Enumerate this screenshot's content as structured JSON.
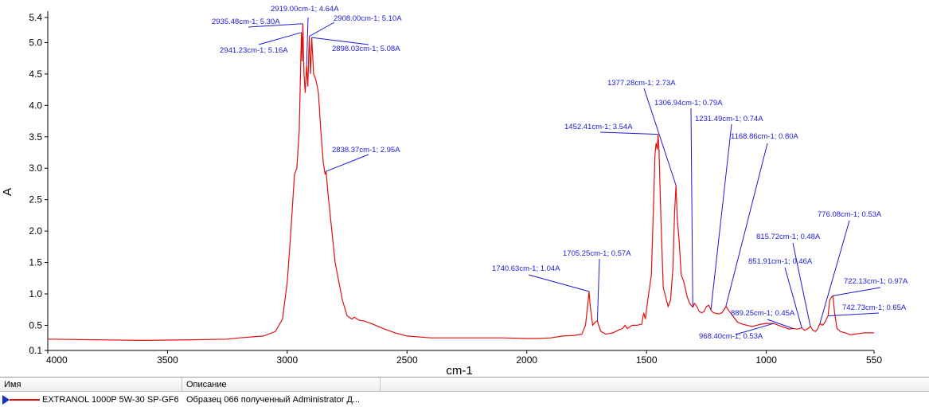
{
  "chart_data": {
    "type": "line",
    "xlabel": "cm-1",
    "ylabel": "A",
    "xlim": [
      4000,
      550
    ],
    "ylim": [
      0.1,
      5.5
    ],
    "x_reversed": true,
    "x_ticks": [
      4000,
      3500,
      3000,
      2500,
      2000,
      1500,
      1000,
      550
    ],
    "y_ticks": [
      {
        "v": 0.1,
        "label": "0.1"
      },
      {
        "v": 0.5,
        "label": "0.5"
      },
      {
        "v": 1.0,
        "label": "1.0"
      },
      {
        "v": 1.5,
        "label": "1.5"
      },
      {
        "v": 2.0,
        "label": "2.0"
      },
      {
        "v": 2.5,
        "label": "2.5"
      },
      {
        "v": 3.0,
        "label": "3.0"
      },
      {
        "v": 3.5,
        "label": "3.5"
      },
      {
        "v": 4.0,
        "label": "4.0"
      },
      {
        "v": 4.5,
        "label": "4.5"
      },
      {
        "v": 5.0,
        "label": "5.0"
      },
      {
        "v": 5.4,
        "label": "5.4"
      }
    ],
    "colors": {
      "series": "#e01010",
      "annotation": "#1a1ad8"
    },
    "series": [
      {
        "name": "EXTRANOL 1000P 5W-30 SP-GF6",
        "points": [
          [
            4000,
            0.28
          ],
          [
            3800,
            0.27
          ],
          [
            3600,
            0.26
          ],
          [
            3400,
            0.27
          ],
          [
            3250,
            0.28
          ],
          [
            3200,
            0.3
          ],
          [
            3100,
            0.33
          ],
          [
            3050,
            0.4
          ],
          [
            3020,
            0.6
          ],
          [
            3000,
            1.2
          ],
          [
            2985,
            2.0
          ],
          [
            2970,
            2.9
          ],
          [
            2960,
            3.0
          ],
          [
            2950,
            3.6
          ],
          [
            2941,
            5.16
          ],
          [
            2938,
            4.7
          ],
          [
            2935,
            5.3
          ],
          [
            2930,
            4.5
          ],
          [
            2925,
            4.2
          ],
          [
            2919,
            4.64
          ],
          [
            2914,
            4.3
          ],
          [
            2908,
            5.1
          ],
          [
            2903,
            4.5
          ],
          [
            2898,
            5.08
          ],
          [
            2890,
            4.5
          ],
          [
            2880,
            4.4
          ],
          [
            2870,
            4.2
          ],
          [
            2860,
            3.6
          ],
          [
            2850,
            3.1
          ],
          [
            2842,
            2.9
          ],
          [
            2838,
            2.95
          ],
          [
            2830,
            2.6
          ],
          [
            2800,
            1.5
          ],
          [
            2770,
            0.9
          ],
          [
            2750,
            0.65
          ],
          [
            2730,
            0.6
          ],
          [
            2720,
            0.63
          ],
          [
            2700,
            0.58
          ],
          [
            2680,
            0.57
          ],
          [
            2650,
            0.53
          ],
          [
            2600,
            0.45
          ],
          [
            2550,
            0.38
          ],
          [
            2500,
            0.33
          ],
          [
            2400,
            0.3
          ],
          [
            2300,
            0.3
          ],
          [
            2200,
            0.3
          ],
          [
            2100,
            0.3
          ],
          [
            2000,
            0.29
          ],
          [
            1950,
            0.29
          ],
          [
            1900,
            0.3
          ],
          [
            1850,
            0.33
          ],
          [
            1800,
            0.34
          ],
          [
            1770,
            0.36
          ],
          [
            1755,
            0.5
          ],
          [
            1745,
            0.85
          ],
          [
            1740,
            1.04
          ],
          [
            1735,
            0.8
          ],
          [
            1725,
            0.5
          ],
          [
            1715,
            0.55
          ],
          [
            1705,
            0.57
          ],
          [
            1700,
            0.5
          ],
          [
            1690,
            0.4
          ],
          [
            1670,
            0.36
          ],
          [
            1640,
            0.38
          ],
          [
            1620,
            0.42
          ],
          [
            1600,
            0.45
          ],
          [
            1590,
            0.5
          ],
          [
            1580,
            0.45
          ],
          [
            1560,
            0.5
          ],
          [
            1540,
            0.5
          ],
          [
            1520,
            0.52
          ],
          [
            1512,
            0.7
          ],
          [
            1505,
            0.6
          ],
          [
            1495,
            0.9
          ],
          [
            1480,
            1.3
          ],
          [
            1470,
            2.5
          ],
          [
            1465,
            3.2
          ],
          [
            1460,
            3.4
          ],
          [
            1455,
            3.3
          ],
          [
            1452,
            3.54
          ],
          [
            1448,
            3.3
          ],
          [
            1440,
            2.2
          ],
          [
            1430,
            1.1
          ],
          [
            1420,
            0.95
          ],
          [
            1410,
            0.8
          ],
          [
            1400,
            0.9
          ],
          [
            1390,
            1.4
          ],
          [
            1383,
            2.3
          ],
          [
            1377,
            2.73
          ],
          [
            1372,
            2.2
          ],
          [
            1365,
            1.9
          ],
          [
            1355,
            1.3
          ],
          [
            1345,
            1.2
          ],
          [
            1330,
            0.95
          ],
          [
            1320,
            0.85
          ],
          [
            1310,
            0.8
          ],
          [
            1306,
            0.79
          ],
          [
            1300,
            0.85
          ],
          [
            1290,
            0.8
          ],
          [
            1280,
            0.72
          ],
          [
            1270,
            0.7
          ],
          [
            1260,
            0.72
          ],
          [
            1250,
            0.8
          ],
          [
            1240,
            0.82
          ],
          [
            1231,
            0.74
          ],
          [
            1220,
            0.7
          ],
          [
            1200,
            0.68
          ],
          [
            1185,
            0.7
          ],
          [
            1168,
            0.8
          ],
          [
            1160,
            0.75
          ],
          [
            1140,
            0.65
          ],
          [
            1120,
            0.55
          ],
          [
            1100,
            0.52
          ],
          [
            1080,
            0.5
          ],
          [
            1060,
            0.48
          ],
          [
            1040,
            0.5
          ],
          [
            1020,
            0.52
          ],
          [
            1000,
            0.53
          ],
          [
            968,
            0.53
          ],
          [
            950,
            0.5
          ],
          [
            920,
            0.46
          ],
          [
            905,
            0.44
          ],
          [
            889,
            0.45
          ],
          [
            870,
            0.44
          ],
          [
            851,
            0.46
          ],
          [
            840,
            0.42
          ],
          [
            830,
            0.44
          ],
          [
            815,
            0.48
          ],
          [
            805,
            0.42
          ],
          [
            795,
            0.4
          ],
          [
            786,
            0.44
          ],
          [
            776,
            0.53
          ],
          [
            765,
            0.5
          ],
          [
            755,
            0.55
          ],
          [
            742,
            0.65
          ],
          [
            735,
            0.9
          ],
          [
            727,
            0.95
          ],
          [
            722,
            0.97
          ],
          [
            715,
            0.7
          ],
          [
            705,
            0.45
          ],
          [
            690,
            0.4
          ],
          [
            670,
            0.38
          ],
          [
            650,
            0.35
          ],
          [
            630,
            0.36
          ],
          [
            610,
            0.37
          ],
          [
            590,
            0.38
          ],
          [
            570,
            0.38
          ],
          [
            550,
            0.38
          ]
        ]
      }
    ],
    "annotations": [
      {
        "text": "2919.00cm-1; 4.64A",
        "x": 2919,
        "y": 4.64
      },
      {
        "text": "2935.48cm-1; 5.30A",
        "x": 2935.48,
        "y": 5.3
      },
      {
        "text": "2908.00cm-1; 5.10A",
        "x": 2908,
        "y": 5.1
      },
      {
        "text": "2941.23cm-1; 5.16A",
        "x": 2941.23,
        "y": 5.16
      },
      {
        "text": "2898.03cm-1; 5.08A",
        "x": 2898.03,
        "y": 5.08
      },
      {
        "text": "2838.37cm-1; 2.95A",
        "x": 2838.37,
        "y": 2.95
      },
      {
        "text": "1377.28cm-1; 2.73A",
        "x": 1377.28,
        "y": 2.73
      },
      {
        "text": "1306.94cm-1; 0.79A",
        "x": 1306.94,
        "y": 0.79
      },
      {
        "text": "1231.49cm-1; 0.74A",
        "x": 1231.49,
        "y": 0.74
      },
      {
        "text": "1452.41cm-1; 3.54A",
        "x": 1452.41,
        "y": 3.54
      },
      {
        "text": "1168.86cm-1; 0.80A",
        "x": 1168.86,
        "y": 0.8
      },
      {
        "text": "776.08cm-1; 0.53A",
        "x": 776.08,
        "y": 0.53
      },
      {
        "text": "815.72cm-1; 0.48A",
        "x": 815.72,
        "y": 0.48
      },
      {
        "text": "1705.25cm-1; 0.57A",
        "x": 1705.25,
        "y": 0.57
      },
      {
        "text": "851.91cm-1; 0.46A",
        "x": 851.91,
        "y": 0.46
      },
      {
        "text": "1740.63cm-1; 1.04A",
        "x": 1740.63,
        "y": 1.04
      },
      {
        "text": "722.13cm-1; 0.97A",
        "x": 722.13,
        "y": 0.97
      },
      {
        "text": "889.25cm-1; 0.45A",
        "x": 889.25,
        "y": 0.45
      },
      {
        "text": "742.73cm-1; 0.65A",
        "x": 742.73,
        "y": 0.65
      },
      {
        "text": "968.40cm-1; 0.53A",
        "x": 968.4,
        "y": 0.53
      }
    ]
  },
  "legend_table": {
    "header_name": "Имя",
    "header_description": "Описание",
    "row_name": "EXTRANOL 1000P 5W-30 SP-GF6",
    "row_description": "Образец 066 полученный Administrator Д..."
  }
}
